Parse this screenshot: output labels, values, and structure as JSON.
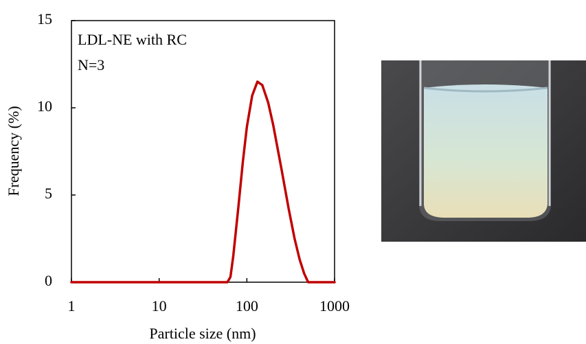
{
  "chart_data": {
    "type": "line",
    "xlabel": "Particle size (nm)",
    "ylabel": "Frequency (%)",
    "annotations": [
      "LDL-NE  with RC",
      "N=3"
    ],
    "x": [
      1,
      10,
      60,
      65,
      70,
      80,
      90,
      100,
      115,
      132,
      150,
      175,
      200,
      250,
      300,
      350,
      400,
      450,
      500,
      1000
    ],
    "values": [
      0,
      0,
      0,
      0.3,
      1.5,
      4.3,
      6.9,
      8.9,
      10.7,
      11.5,
      11.3,
      10.3,
      9.0,
      6.4,
      4.2,
      2.5,
      1.3,
      0.5,
      0,
      0
    ],
    "color": "#c00000",
    "xscale": "log",
    "xlim": [
      1,
      1000
    ],
    "xticks": [
      1,
      10,
      100,
      1000
    ],
    "ylim": [
      0,
      15
    ],
    "yticks": [
      0,
      5,
      10,
      15
    ]
  }
}
